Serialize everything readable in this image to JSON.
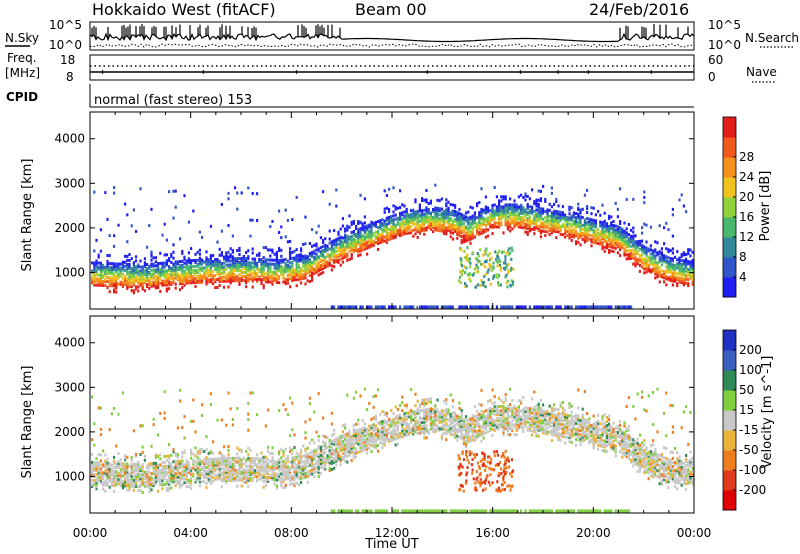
{
  "header": {
    "radar": "Hokkaido West (fitACF)",
    "beam": "Beam 00",
    "date": "24/Feb/2016"
  },
  "noise_panel": {
    "left_label": "N.Sky",
    "right_label": "N.Search",
    "left_ticks": [
      "10^5",
      "10^0"
    ],
    "right_ticks": [
      "10^5",
      "10^0"
    ]
  },
  "freq_panel": {
    "left_label_1": "Freq.",
    "left_label_2": "[MHz]",
    "left_ticks": [
      "18",
      "8"
    ],
    "right_label": "Nave",
    "right_ticks": [
      "60",
      "0"
    ]
  },
  "cpid_panel": {
    "label": "CPID",
    "mode_text": "normal (fast stereo) 153"
  },
  "x_axis": {
    "label": "Time UT",
    "ticks": [
      "00:00",
      "04:00",
      "08:00",
      "12:00",
      "16:00",
      "20:00",
      "00:00"
    ],
    "range_hours": [
      0,
      24
    ]
  },
  "chart_data": [
    {
      "type": "heatmap",
      "parameter": "Power",
      "ylabel": "Slant Range [km]",
      "yticks": [
        "1000",
        "2000",
        "3000",
        "4000"
      ],
      "ylim": [
        180,
        4600
      ],
      "colorbar_label": "Power [dB]",
      "colorbar_ticks": [
        "4",
        "8",
        "12",
        "16",
        "20",
        "24",
        "28"
      ],
      "colors": [
        "#1f1ff0",
        "#2f55c8",
        "#34889c",
        "#49b86c",
        "#8fd23a",
        "#f0c21e",
        "#f3911c",
        "#ef5a1c",
        "#e21b1b"
      ],
      "band": {
        "time_hours": [
          0,
          2,
          4,
          6,
          7.5,
          8.5,
          10,
          11.5,
          12.5,
          13.5,
          14.5,
          15,
          16,
          17,
          18,
          19,
          20,
          21,
          22,
          23,
          24
        ],
        "slant_range_km": [
          1000,
          950,
          1050,
          1100,
          1050,
          1150,
          1600,
          1950,
          2150,
          2250,
          2150,
          2000,
          2300,
          2300,
          2200,
          2100,
          1950,
          1800,
          1350,
          1100,
          1000
        ]
      }
    },
    {
      "type": "heatmap",
      "parameter": "Velocity",
      "ylabel": "Slant Range [km]",
      "yticks": [
        "1000",
        "2000",
        "3000",
        "4000"
      ],
      "ylim": [
        180,
        4600
      ],
      "colorbar_label": "Velocity [m s^-1]",
      "colorbar_ticks": [
        "200",
        "100",
        "50",
        "15",
        "-15",
        "-50",
        "-100",
        "-200"
      ],
      "colors": [
        "#2030c0",
        "#3a5fbf",
        "#2f8a55",
        "#7fcf3f",
        "#c8c8c8",
        "#eab43a",
        "#ee7d1f",
        "#e03a1c",
        "#e00000"
      ],
      "band": {
        "time_hours": [
          0,
          2,
          4,
          6,
          7.5,
          8.5,
          10,
          11.5,
          12.5,
          13.5,
          14.5,
          15,
          16,
          17,
          18,
          19,
          20,
          21,
          22,
          23,
          24
        ],
        "slant_range_km": [
          1100,
          1050,
          1150,
          1200,
          1150,
          1250,
          1700,
          2000,
          2200,
          2300,
          2200,
          2050,
          2350,
          2350,
          2250,
          2150,
          2000,
          1850,
          1400,
          1150,
          1100
        ]
      }
    }
  ]
}
